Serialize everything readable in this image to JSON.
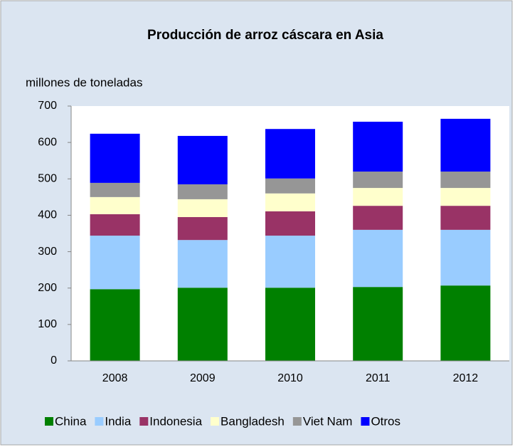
{
  "chart_data": {
    "type": "stacked_bar",
    "title": "Producción de arroz cáscara en Asia",
    "y_label": "millones de toneladas",
    "categories": [
      "2008",
      "2009",
      "2010",
      "2011",
      "2012"
    ],
    "series": [
      {
        "name": "China",
        "color": "#008000",
        "values": [
          197,
          201,
          201,
          203,
          207
        ]
      },
      {
        "name": "India",
        "color": "#99ccff",
        "values": [
          147,
          131,
          143,
          157,
          153
        ]
      },
      {
        "name": "Indonesia",
        "color": "#993366",
        "values": [
          59,
          63,
          67,
          66,
          66
        ]
      },
      {
        "name": "Bangladesh",
        "color": "#ffffcc",
        "values": [
          47,
          49,
          49,
          49,
          49
        ]
      },
      {
        "name": "Viet Nam",
        "color": "#969696",
        "values": [
          39,
          41,
          41,
          45,
          45
        ]
      },
      {
        "name": "Otros",
        "color": "#0000ff",
        "values": [
          135,
          133,
          136,
          137,
          145
        ]
      }
    ],
    "ylim": [
      0,
      700
    ],
    "yticks": [
      0,
      100,
      200,
      300,
      400,
      500,
      600,
      700
    ],
    "legend": "bottom"
  }
}
